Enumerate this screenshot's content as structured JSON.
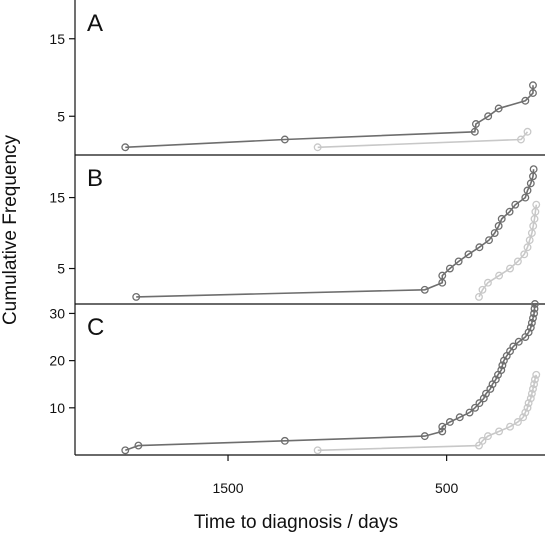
{
  "chart_data": {
    "type": "line",
    "xlabel": "Time to diagnosis / days",
    "ylabel": "Cumulative Frequency",
    "x_reversed": true,
    "xlim": [
      2200,
      50
    ],
    "xticks": [
      1500,
      500
    ],
    "colors": {
      "dark": "#6e6e6e",
      "light": "#c8c8c8"
    },
    "panels": [
      {
        "label": "A",
        "ylim": [
          0,
          20
        ],
        "yticks": [
          5,
          15
        ],
        "series": [
          {
            "color": "dark",
            "x": [
              1970,
              1240,
              371,
              366,
              310,
              262,
              140,
              105,
              105
            ],
            "y": [
              1,
              2,
              3,
              4,
              5,
              6,
              7,
              8,
              9
            ]
          },
          {
            "color": "light",
            "x": [
              1090,
              160,
              130
            ],
            "y": [
              1,
              2,
              3
            ]
          }
        ]
      },
      {
        "label": "B",
        "ylim": [
          0,
          21
        ],
        "yticks": [
          5,
          15
        ],
        "series": [
          {
            "color": "dark",
            "x": [
              1920,
              600,
              520,
              520,
              485,
              445,
              400,
              350,
              306,
              280,
              262,
              248,
              212,
              186,
              140,
              130,
              115,
              105,
              102
            ],
            "y": [
              1,
              2,
              3,
              4,
              5,
              6,
              7,
              8,
              9,
              10,
              11,
              12,
              13,
              14,
              15,
              16,
              17,
              18,
              19
            ]
          },
          {
            "color": "light",
            "x": [
              352,
              336,
              311,
              260,
              210,
              174,
              145,
              130,
              120,
              110,
              104,
              98,
              94,
              90
            ],
            "y": [
              1,
              2,
              3,
              4,
              5,
              6,
              7,
              8,
              9,
              10,
              11,
              12,
              13,
              14
            ]
          }
        ]
      },
      {
        "label": "C",
        "ylim": [
          0,
          32
        ],
        "yticks": [
          10,
          20,
          30
        ],
        "series": [
          {
            "color": "dark",
            "x": [
              1970,
              1910,
              1240,
              600,
              520,
              520,
              485,
              440,
              395,
              370,
              350,
              330,
              320,
              300,
              290,
              275,
              265,
              250,
              245,
              238,
              225,
              210,
              195,
              170,
              140,
              125,
              115,
              110,
              105,
              100,
              98,
              96
            ],
            "y": [
              1,
              2,
              3,
              4,
              5,
              6,
              7,
              8,
              9,
              10,
              11,
              12,
              13,
              14,
              15,
              16,
              17,
              18,
              19,
              20,
              21,
              22,
              23,
              24,
              25,
              26,
              27,
              28,
              29,
              30,
              31,
              32
            ]
          },
          {
            "color": "light",
            "x": [
              1090,
              352,
              336,
              311,
              260,
              210,
              174,
              150,
              140,
              130,
              125,
              115,
              110,
              105,
              100,
              96,
              90
            ],
            "y": [
              1,
              2,
              3,
              4,
              5,
              6,
              7,
              8,
              9,
              10,
              11,
              12,
              13,
              14,
              15,
              16,
              17
            ]
          }
        ]
      }
    ]
  }
}
